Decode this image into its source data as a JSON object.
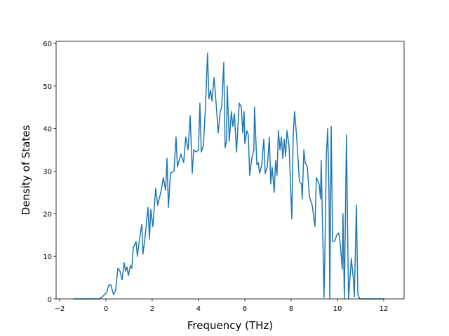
{
  "chart_data": {
    "type": "line",
    "x_label": "Frequency (THz)",
    "y_label": "Density of States",
    "x": [
      -1.4,
      -0.3,
      -0.15,
      -0.06,
      0.03,
      0.12,
      0.21,
      0.33,
      0.42,
      0.52,
      0.61,
      0.7,
      0.79,
      0.85,
      0.91,
      0.97,
      1.06,
      1.12,
      1.18,
      1.3,
      1.36,
      1.45,
      1.55,
      1.6,
      1.7,
      1.82,
      1.88,
      1.94,
      2.03,
      2.15,
      2.24,
      2.39,
      2.48,
      2.58,
      2.64,
      2.7,
      2.79,
      2.94,
      3.03,
      3.09,
      3.24,
      3.36,
      3.45,
      3.55,
      3.64,
      3.73,
      3.79,
      3.91,
      4.0,
      4.06,
      4.12,
      4.21,
      4.3,
      4.39,
      4.45,
      4.52,
      4.58,
      4.67,
      4.76,
      4.85,
      4.94,
      5.0,
      5.09,
      5.15,
      5.21,
      5.24,
      5.33,
      5.42,
      5.48,
      5.55,
      5.64,
      5.76,
      5.85,
      5.91,
      5.97,
      6.0,
      6.09,
      6.15,
      6.21,
      6.3,
      6.39,
      6.42,
      6.52,
      6.58,
      6.64,
      6.73,
      6.82,
      6.88,
      6.97,
      7.06,
      7.12,
      7.18,
      7.27,
      7.33,
      7.39,
      7.45,
      7.52,
      7.58,
      7.64,
      7.7,
      7.76,
      7.82,
      7.91,
      8.03,
      8.09,
      8.15,
      8.24,
      8.36,
      8.45,
      8.48,
      8.55,
      8.61,
      8.7,
      8.79,
      8.91,
      9.03,
      9.09,
      9.21,
      9.27,
      9.3,
      9.42,
      9.48,
      9.52,
      9.58,
      9.64,
      9.67,
      9.73,
      9.79,
      9.88,
      9.97,
      10.06,
      10.12,
      10.21,
      10.24,
      10.3,
      10.39,
      10.45,
      10.48,
      10.6,
      10.7,
      10.73,
      10.82,
      10.88,
      10.97,
      12
    ],
    "series": [
      {
        "color": "#1f77b4",
        "values": [
          0,
          0,
          0.5,
          1,
          1.5,
          3.2,
          3.3,
          1,
          2,
          7.2,
          6.5,
          4.5,
          8.5,
          6.5,
          7.5,
          5.5,
          7.8,
          7.2,
          12,
          13.5,
          10,
          14,
          17.5,
          10.5,
          15,
          21.5,
          14,
          21,
          17,
          26,
          22,
          25.5,
          28.5,
          25.5,
          33,
          21.5,
          29.5,
          30,
          38,
          31,
          34,
          32,
          38,
          35,
          43,
          29.5,
          35,
          34.5,
          35,
          46,
          34.5,
          36,
          45,
          57.7,
          47,
          49,
          46.5,
          52,
          46,
          39,
          44,
          45,
          55.5,
          35.5,
          37,
          50,
          37,
          44,
          40.5,
          43.5,
          34.5,
          46,
          45,
          39,
          44,
          36.5,
          39.5,
          38.5,
          29,
          33,
          35,
          45,
          31.5,
          32,
          29.5,
          31.5,
          37.5,
          29.5,
          31,
          38,
          27,
          31,
          25,
          32.5,
          29,
          39.5,
          35,
          38,
          33,
          37.5,
          33.5,
          39.5,
          36,
          18.8,
          38.5,
          44,
          38,
          27.5,
          27,
          23.5,
          35,
          32,
          31,
          24,
          22,
          17,
          28.5,
          27,
          23.5,
          32.5,
          0.3,
          17.5,
          33.5,
          40,
          23.5,
          0,
          40.5,
          13.5,
          13.5,
          15,
          15.5,
          13,
          7,
          20,
          0,
          38.5,
          12,
          0,
          9.5,
          4,
          0.5,
          22,
          1,
          0,
          0
        ]
      }
    ],
    "xlim": [
      -2.15,
      12.88
    ],
    "ylim": [
      0,
      60.5
    ],
    "xticks": [
      {
        "value": -2,
        "label": "−2"
      },
      0,
      2,
      4,
      6,
      8,
      10,
      12
    ],
    "yticks": [
      0,
      10,
      20,
      30,
      40,
      50,
      60
    ]
  }
}
